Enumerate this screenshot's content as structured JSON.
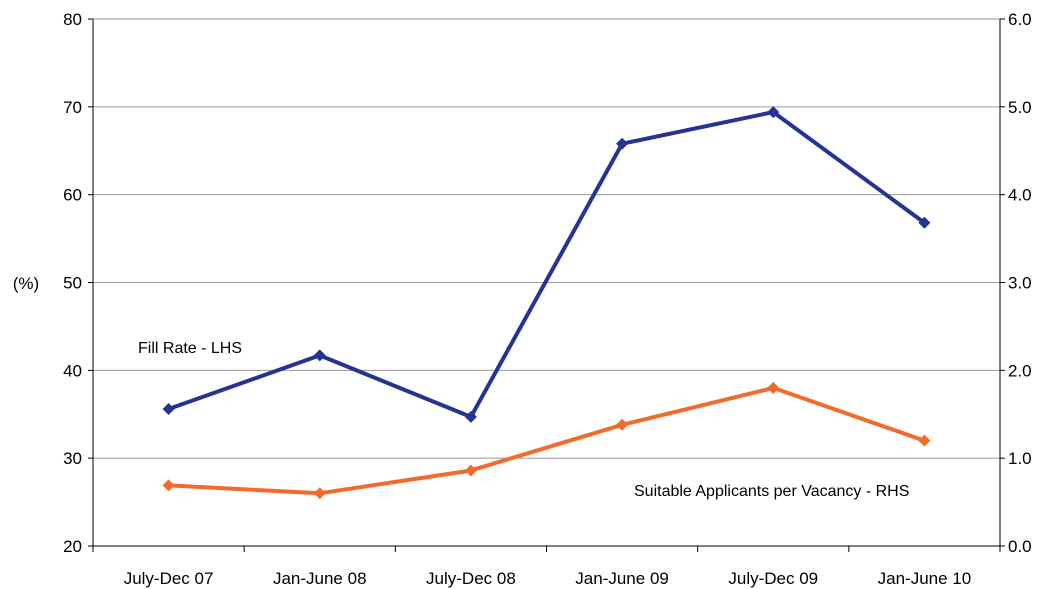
{
  "chart_data": {
    "type": "line",
    "categories": [
      "July-Dec 07",
      "Jan-June 08",
      "July-Dec 08",
      "Jan-June 09",
      "July-Dec 09",
      "Jan-June 10"
    ],
    "left_axis": {
      "label": "(%)",
      "ylim": [
        20,
        80
      ],
      "ticks": [
        "20",
        "30",
        "40",
        "50",
        "60",
        "70",
        "80"
      ]
    },
    "right_axis": {
      "label": "",
      "ylim": [
        0.0,
        6.0
      ],
      "ticks": [
        "0.0",
        "1.0",
        "2.0",
        "3.0",
        "4.0",
        "5.0",
        "6.0"
      ]
    },
    "grid": true,
    "series": [
      {
        "name": "Fill Rate - LHS",
        "axis": "left",
        "color": "#253494",
        "values": [
          35.6,
          41.7,
          34.7,
          65.8,
          69.4,
          56.8
        ]
      },
      {
        "name": "Suitable Applicants per Vacancy - RHS",
        "axis": "right",
        "color": "#F26B2A",
        "values": [
          0.69,
          0.6,
          0.86,
          1.38,
          1.8,
          1.2
        ]
      }
    ]
  }
}
